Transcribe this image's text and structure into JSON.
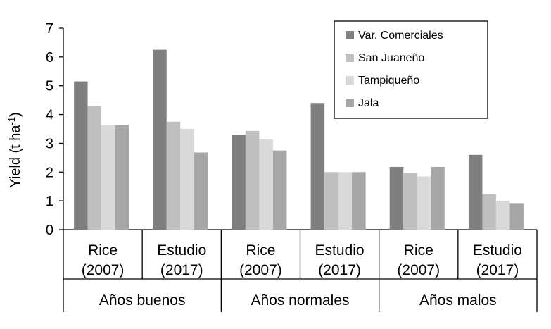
{
  "chart_data": {
    "type": "bar",
    "ylabel": "Yield (t ha",
    "ylabel_sup": "-1",
    "ylabel_close": ")",
    "ylim": [
      0,
      7
    ],
    "yticks": [
      "0",
      "1",
      "2",
      "3",
      "4",
      "5",
      "6",
      "7"
    ],
    "grid": false,
    "legend_position": "top-right",
    "categories": [
      {
        "line1": "Rice",
        "line2": "(2007)"
      },
      {
        "line1": "Estudio",
        "line2": "(2017)"
      },
      {
        "line1": "Rice",
        "line2": "(2007)"
      },
      {
        "line1": "Estudio",
        "line2": "(2017)"
      },
      {
        "line1": "Rice",
        "line2": "(2007)"
      },
      {
        "line1": "Estudio",
        "line2": "(2017)"
      }
    ],
    "groups": [
      "Años buenos",
      "Años normales",
      "Años malos"
    ],
    "series": [
      {
        "name": "Var. Comerciales",
        "color": "#7f7f7f",
        "values": [
          5.15,
          6.25,
          3.3,
          4.4,
          2.18,
          2.6
        ]
      },
      {
        "name": "San Juaneño",
        "color": "#bfbfbf",
        "values": [
          4.3,
          3.75,
          3.43,
          2.0,
          1.97,
          1.23
        ]
      },
      {
        "name": "Tampiqueño",
        "color": "#d9d9d9",
        "values": [
          3.63,
          3.5,
          3.13,
          2.0,
          1.85,
          1.0
        ]
      },
      {
        "name": "Jala",
        "color": "#a6a6a6",
        "values": [
          3.63,
          2.68,
          2.75,
          2.0,
          2.18,
          0.92
        ]
      }
    ]
  }
}
